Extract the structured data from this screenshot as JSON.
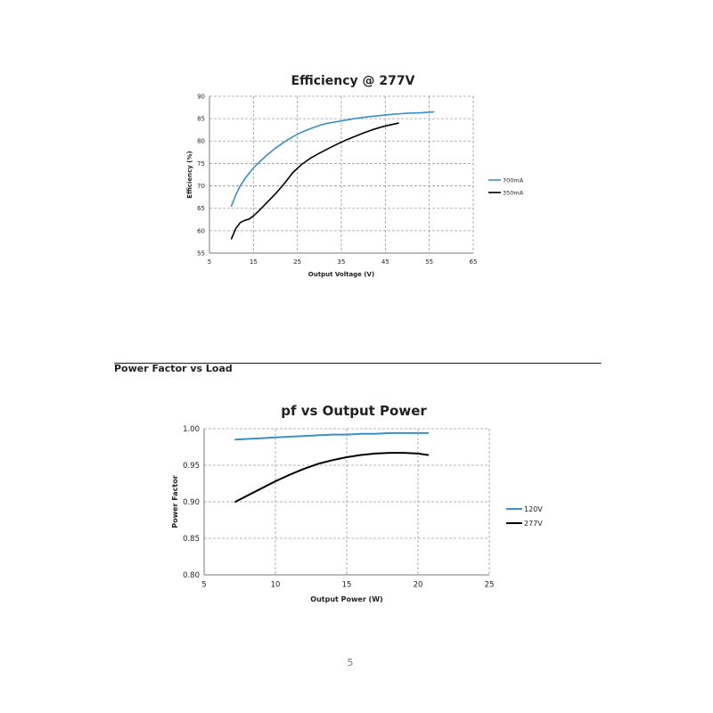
{
  "section": {
    "heading": "Power Factor vs Load"
  },
  "page_number": "5",
  "chart_data": [
    {
      "type": "line",
      "title": "Efficiency @ 277V",
      "xlabel": "Output Voltage (V)",
      "ylabel": "Efficiency (%)",
      "xlim": [
        5,
        65
      ],
      "ylim": [
        55,
        90
      ],
      "xticks": [
        5,
        15,
        25,
        35,
        45,
        55,
        65
      ],
      "yticks": [
        55,
        60,
        65,
        70,
        75,
        80,
        85,
        90
      ],
      "grid": true,
      "legend": "right",
      "series": [
        {
          "name": "700mA",
          "color": "#3a8fc9",
          "x": [
            10,
            11,
            12,
            13,
            14,
            15,
            16,
            18,
            20,
            22,
            24,
            26,
            28,
            30,
            32,
            35,
            38,
            41,
            44,
            47,
            50,
            53,
            56
          ],
          "y": [
            65.5,
            68,
            70,
            71.5,
            72.8,
            74,
            75,
            76.8,
            78.4,
            79.8,
            81,
            82,
            82.8,
            83.5,
            84,
            84.5,
            85,
            85.4,
            85.7,
            86,
            86.2,
            86.3,
            86.5
          ]
        },
        {
          "name": "350mA",
          "color": "#000000",
          "x": [
            10,
            11,
            12,
            13,
            14,
            15,
            16,
            18,
            20,
            22,
            24,
            26,
            28,
            30,
            32,
            34,
            36,
            38,
            40,
            42,
            44,
            46,
            48
          ],
          "y": [
            58.2,
            60.5,
            61.8,
            62.3,
            62.6,
            63.3,
            64.2,
            66.2,
            68.2,
            70.5,
            73,
            74.8,
            76.2,
            77.3,
            78.3,
            79.3,
            80.2,
            81,
            81.8,
            82.5,
            83.1,
            83.6,
            84
          ]
        }
      ]
    },
    {
      "type": "line",
      "title": "pf vs Output Power",
      "xlabel": "Output Power (W)",
      "ylabel": "Power Factor",
      "xlim": [
        5,
        25
      ],
      "ylim": [
        0.8,
        1.0
      ],
      "xticks": [
        5,
        10,
        15,
        20,
        25
      ],
      "yticks": [
        "0.80",
        "0.85",
        "0.90",
        "0.95",
        "1.00"
      ],
      "grid": true,
      "legend": "right",
      "series": [
        {
          "name": "120V",
          "color": "#3a8fc9",
          "x": [
            7.2,
            8,
            9,
            10,
            11,
            12,
            13,
            14,
            15,
            16,
            17,
            18,
            19,
            20,
            20.7
          ],
          "y": [
            0.985,
            0.986,
            0.987,
            0.988,
            0.989,
            0.99,
            0.991,
            0.992,
            0.992,
            0.993,
            0.993,
            0.994,
            0.994,
            0.994,
            0.994
          ]
        },
        {
          "name": "277V",
          "color": "#000000",
          "x": [
            7.2,
            8,
            9,
            10,
            11,
            12,
            13,
            14,
            15,
            16,
            17,
            18,
            19,
            20,
            20.7
          ],
          "y": [
            0.9,
            0.908,
            0.918,
            0.928,
            0.937,
            0.945,
            0.952,
            0.957,
            0.961,
            0.964,
            0.966,
            0.967,
            0.967,
            0.966,
            0.964
          ]
        }
      ]
    }
  ]
}
